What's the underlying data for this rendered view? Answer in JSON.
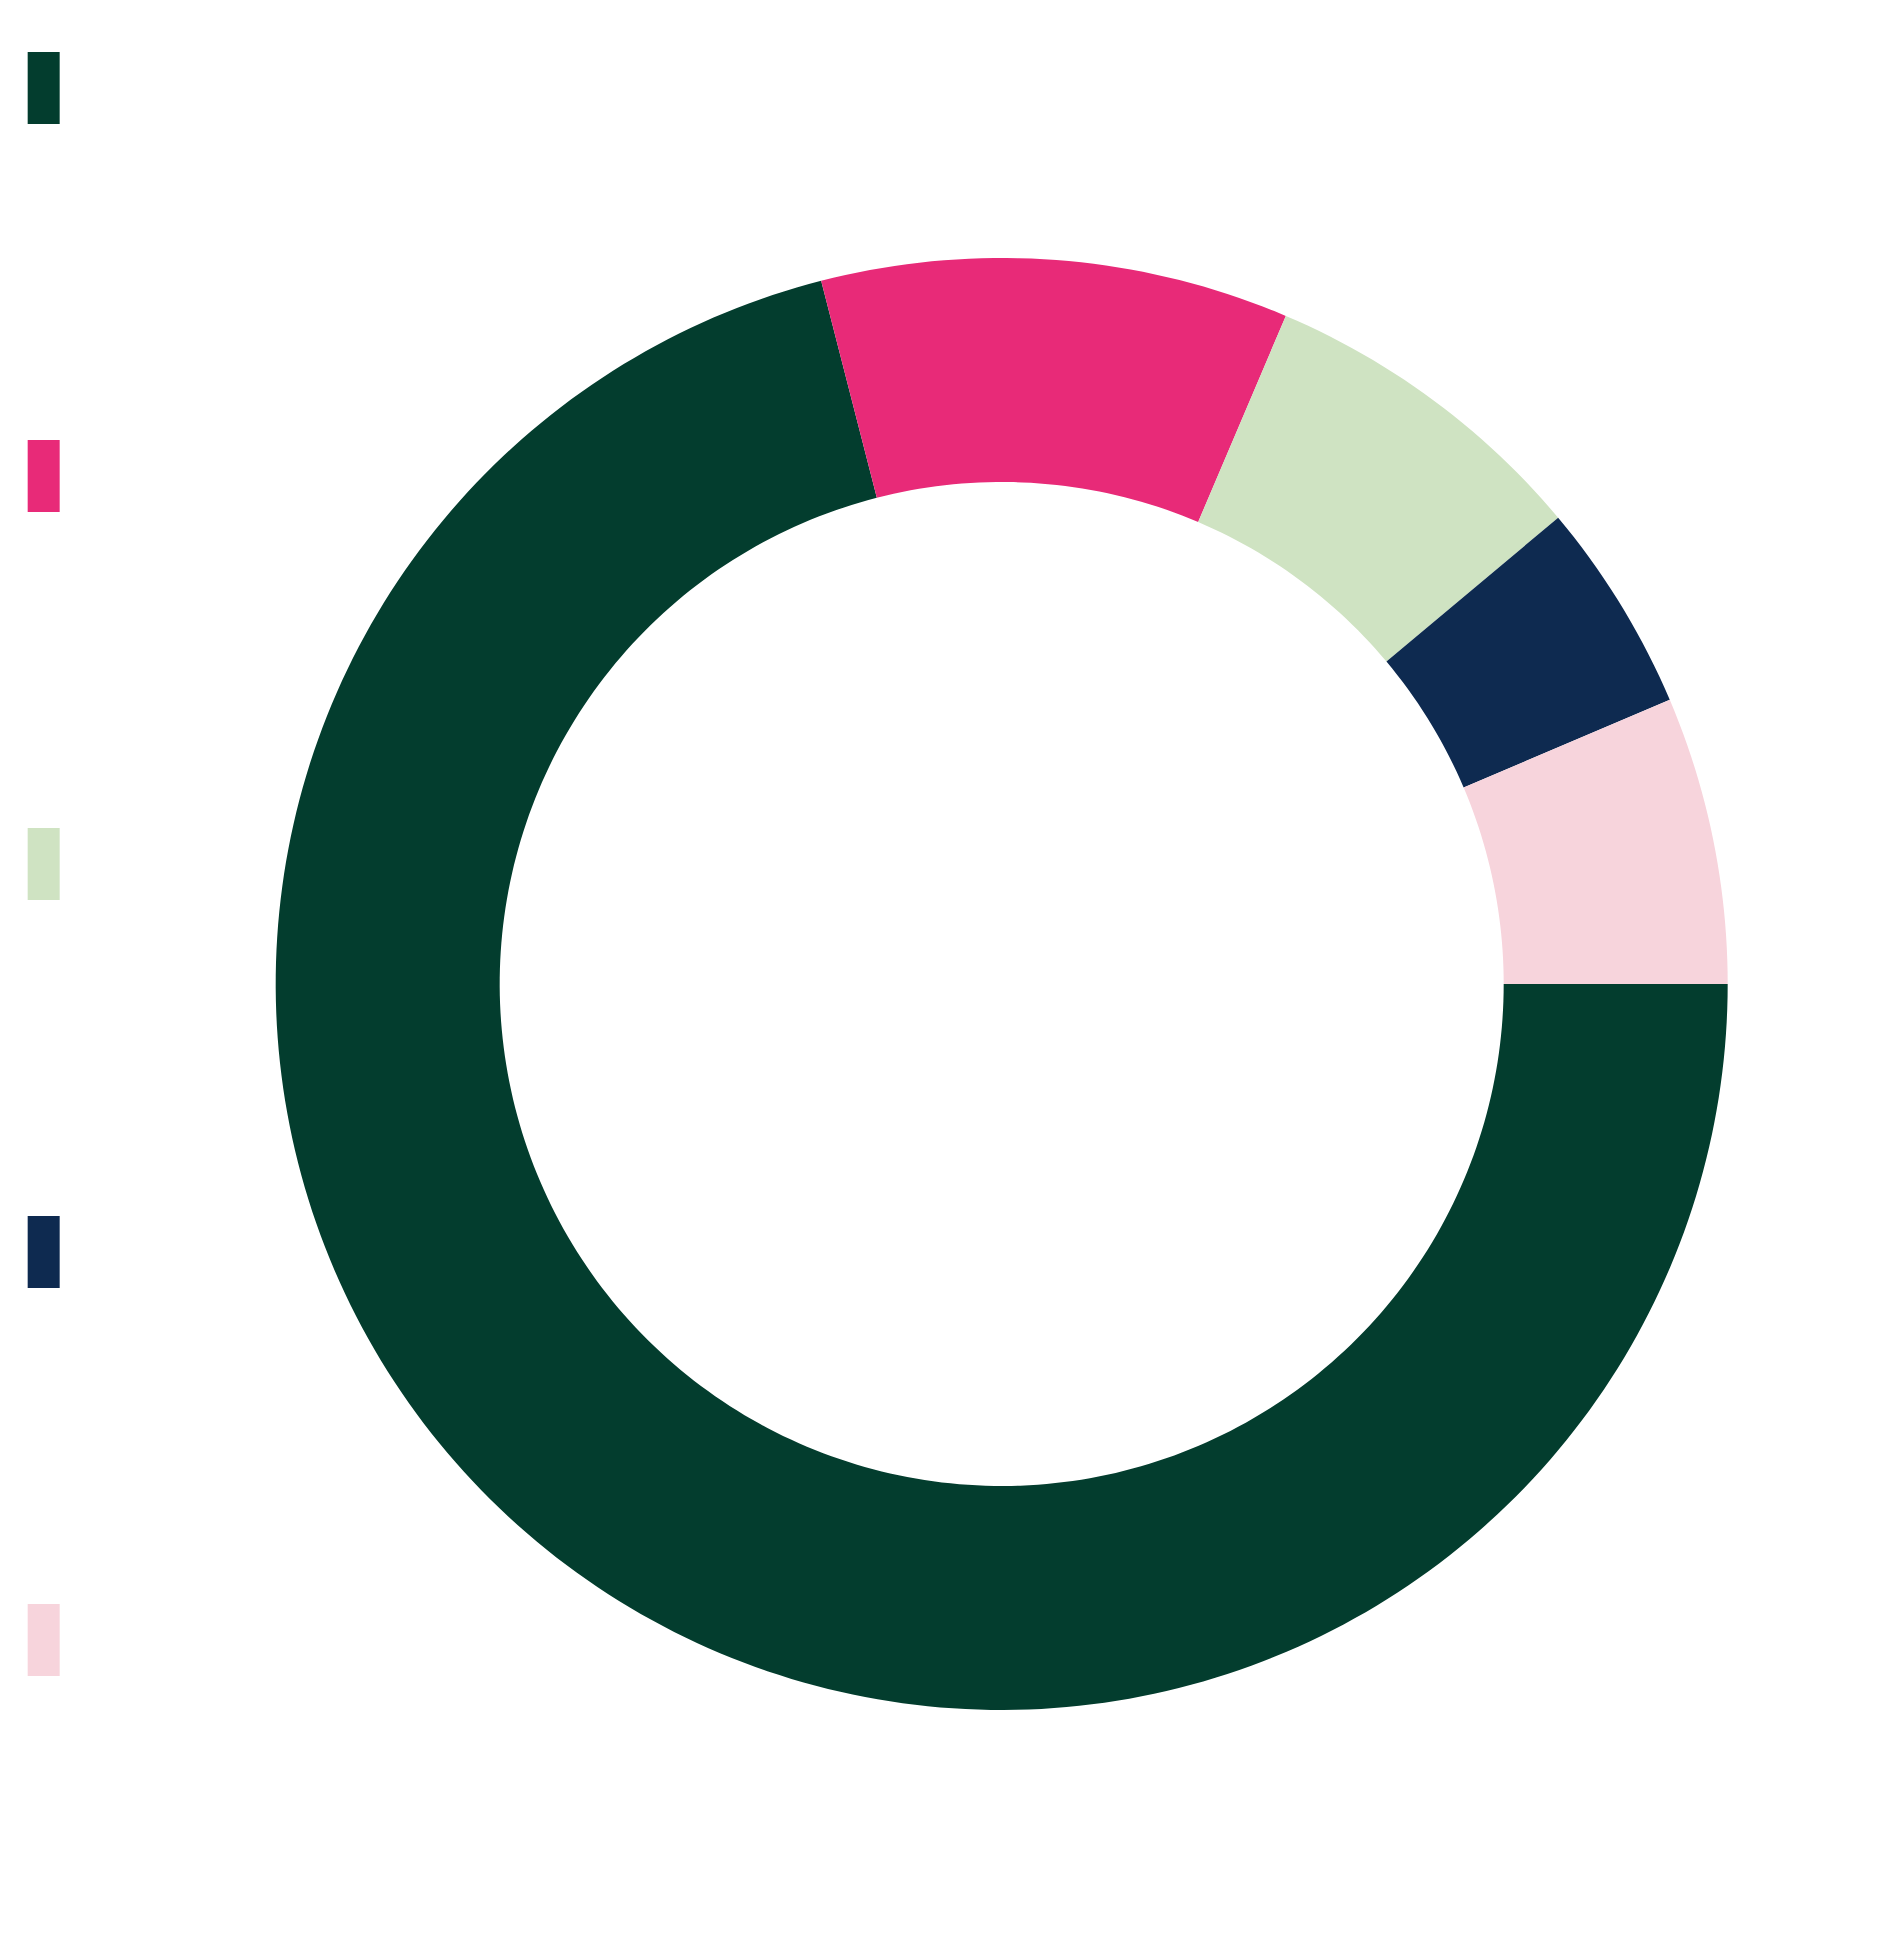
{
  "chart_data": {
    "type": "donut",
    "categories": [
      null,
      null,
      null,
      null,
      null
    ],
    "values": [
      71.0,
      10.4,
      7.5,
      4.7,
      6.4
    ],
    "colors": [
      "#033d2e",
      "#e82a78",
      "#cfe3c2",
      "#0e2a50",
      "#f7d4dc"
    ]
  }
}
